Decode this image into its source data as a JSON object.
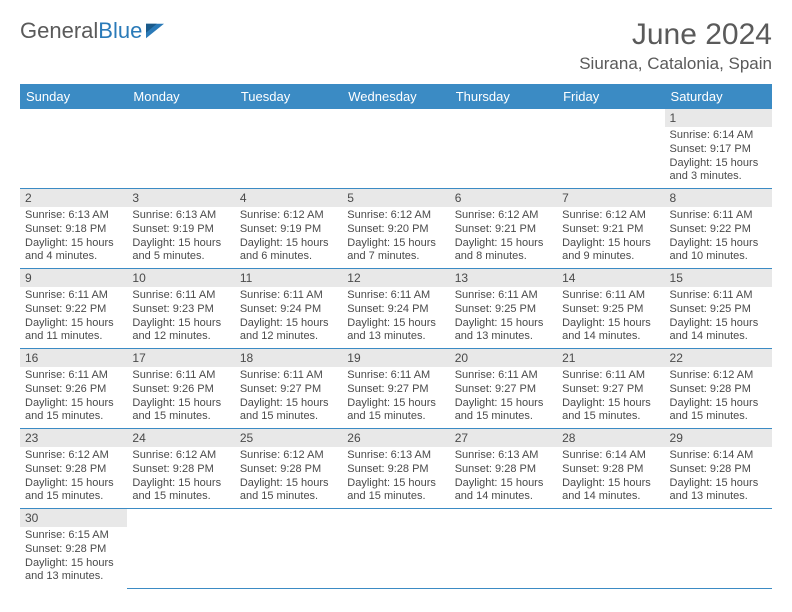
{
  "brand": {
    "name_gray": "General",
    "name_blue": "Blue"
  },
  "title": "June 2024",
  "location": "Siurana, Catalonia, Spain",
  "colors": {
    "header_bg": "#3b8bc4",
    "header_text": "#ffffff",
    "daynum_bg": "#e8e8e8",
    "text": "#4a4a4a",
    "cell_border": "#3b8bc4",
    "brand_gray": "#5a5a5a",
    "brand_blue": "#2a7ab8"
  },
  "weekdays": [
    "Sunday",
    "Monday",
    "Tuesday",
    "Wednesday",
    "Thursday",
    "Friday",
    "Saturday"
  ],
  "weeks": [
    [
      null,
      null,
      null,
      null,
      null,
      null,
      {
        "n": "1",
        "sr": "Sunrise: 6:14 AM",
        "ss": "Sunset: 9:17 PM",
        "dl1": "Daylight: 15 hours",
        "dl2": "and 3 minutes."
      }
    ],
    [
      {
        "n": "2",
        "sr": "Sunrise: 6:13 AM",
        "ss": "Sunset: 9:18 PM",
        "dl1": "Daylight: 15 hours",
        "dl2": "and 4 minutes."
      },
      {
        "n": "3",
        "sr": "Sunrise: 6:13 AM",
        "ss": "Sunset: 9:19 PM",
        "dl1": "Daylight: 15 hours",
        "dl2": "and 5 minutes."
      },
      {
        "n": "4",
        "sr": "Sunrise: 6:12 AM",
        "ss": "Sunset: 9:19 PM",
        "dl1": "Daylight: 15 hours",
        "dl2": "and 6 minutes."
      },
      {
        "n": "5",
        "sr": "Sunrise: 6:12 AM",
        "ss": "Sunset: 9:20 PM",
        "dl1": "Daylight: 15 hours",
        "dl2": "and 7 minutes."
      },
      {
        "n": "6",
        "sr": "Sunrise: 6:12 AM",
        "ss": "Sunset: 9:21 PM",
        "dl1": "Daylight: 15 hours",
        "dl2": "and 8 minutes."
      },
      {
        "n": "7",
        "sr": "Sunrise: 6:12 AM",
        "ss": "Sunset: 9:21 PM",
        "dl1": "Daylight: 15 hours",
        "dl2": "and 9 minutes."
      },
      {
        "n": "8",
        "sr": "Sunrise: 6:11 AM",
        "ss": "Sunset: 9:22 PM",
        "dl1": "Daylight: 15 hours",
        "dl2": "and 10 minutes."
      }
    ],
    [
      {
        "n": "9",
        "sr": "Sunrise: 6:11 AM",
        "ss": "Sunset: 9:22 PM",
        "dl1": "Daylight: 15 hours",
        "dl2": "and 11 minutes."
      },
      {
        "n": "10",
        "sr": "Sunrise: 6:11 AM",
        "ss": "Sunset: 9:23 PM",
        "dl1": "Daylight: 15 hours",
        "dl2": "and 12 minutes."
      },
      {
        "n": "11",
        "sr": "Sunrise: 6:11 AM",
        "ss": "Sunset: 9:24 PM",
        "dl1": "Daylight: 15 hours",
        "dl2": "and 12 minutes."
      },
      {
        "n": "12",
        "sr": "Sunrise: 6:11 AM",
        "ss": "Sunset: 9:24 PM",
        "dl1": "Daylight: 15 hours",
        "dl2": "and 13 minutes."
      },
      {
        "n": "13",
        "sr": "Sunrise: 6:11 AM",
        "ss": "Sunset: 9:25 PM",
        "dl1": "Daylight: 15 hours",
        "dl2": "and 13 minutes."
      },
      {
        "n": "14",
        "sr": "Sunrise: 6:11 AM",
        "ss": "Sunset: 9:25 PM",
        "dl1": "Daylight: 15 hours",
        "dl2": "and 14 minutes."
      },
      {
        "n": "15",
        "sr": "Sunrise: 6:11 AM",
        "ss": "Sunset: 9:25 PM",
        "dl1": "Daylight: 15 hours",
        "dl2": "and 14 minutes."
      }
    ],
    [
      {
        "n": "16",
        "sr": "Sunrise: 6:11 AM",
        "ss": "Sunset: 9:26 PM",
        "dl1": "Daylight: 15 hours",
        "dl2": "and 15 minutes."
      },
      {
        "n": "17",
        "sr": "Sunrise: 6:11 AM",
        "ss": "Sunset: 9:26 PM",
        "dl1": "Daylight: 15 hours",
        "dl2": "and 15 minutes."
      },
      {
        "n": "18",
        "sr": "Sunrise: 6:11 AM",
        "ss": "Sunset: 9:27 PM",
        "dl1": "Daylight: 15 hours",
        "dl2": "and 15 minutes."
      },
      {
        "n": "19",
        "sr": "Sunrise: 6:11 AM",
        "ss": "Sunset: 9:27 PM",
        "dl1": "Daylight: 15 hours",
        "dl2": "and 15 minutes."
      },
      {
        "n": "20",
        "sr": "Sunrise: 6:11 AM",
        "ss": "Sunset: 9:27 PM",
        "dl1": "Daylight: 15 hours",
        "dl2": "and 15 minutes."
      },
      {
        "n": "21",
        "sr": "Sunrise: 6:11 AM",
        "ss": "Sunset: 9:27 PM",
        "dl1": "Daylight: 15 hours",
        "dl2": "and 15 minutes."
      },
      {
        "n": "22",
        "sr": "Sunrise: 6:12 AM",
        "ss": "Sunset: 9:28 PM",
        "dl1": "Daylight: 15 hours",
        "dl2": "and 15 minutes."
      }
    ],
    [
      {
        "n": "23",
        "sr": "Sunrise: 6:12 AM",
        "ss": "Sunset: 9:28 PM",
        "dl1": "Daylight: 15 hours",
        "dl2": "and 15 minutes."
      },
      {
        "n": "24",
        "sr": "Sunrise: 6:12 AM",
        "ss": "Sunset: 9:28 PM",
        "dl1": "Daylight: 15 hours",
        "dl2": "and 15 minutes."
      },
      {
        "n": "25",
        "sr": "Sunrise: 6:12 AM",
        "ss": "Sunset: 9:28 PM",
        "dl1": "Daylight: 15 hours",
        "dl2": "and 15 minutes."
      },
      {
        "n": "26",
        "sr": "Sunrise: 6:13 AM",
        "ss": "Sunset: 9:28 PM",
        "dl1": "Daylight: 15 hours",
        "dl2": "and 15 minutes."
      },
      {
        "n": "27",
        "sr": "Sunrise: 6:13 AM",
        "ss": "Sunset: 9:28 PM",
        "dl1": "Daylight: 15 hours",
        "dl2": "and 14 minutes."
      },
      {
        "n": "28",
        "sr": "Sunrise: 6:14 AM",
        "ss": "Sunset: 9:28 PM",
        "dl1": "Daylight: 15 hours",
        "dl2": "and 14 minutes."
      },
      {
        "n": "29",
        "sr": "Sunrise: 6:14 AM",
        "ss": "Sunset: 9:28 PM",
        "dl1": "Daylight: 15 hours",
        "dl2": "and 13 minutes."
      }
    ],
    [
      {
        "n": "30",
        "sr": "Sunrise: 6:15 AM",
        "ss": "Sunset: 9:28 PM",
        "dl1": "Daylight: 15 hours",
        "dl2": "and 13 minutes."
      },
      null,
      null,
      null,
      null,
      null,
      null
    ]
  ]
}
